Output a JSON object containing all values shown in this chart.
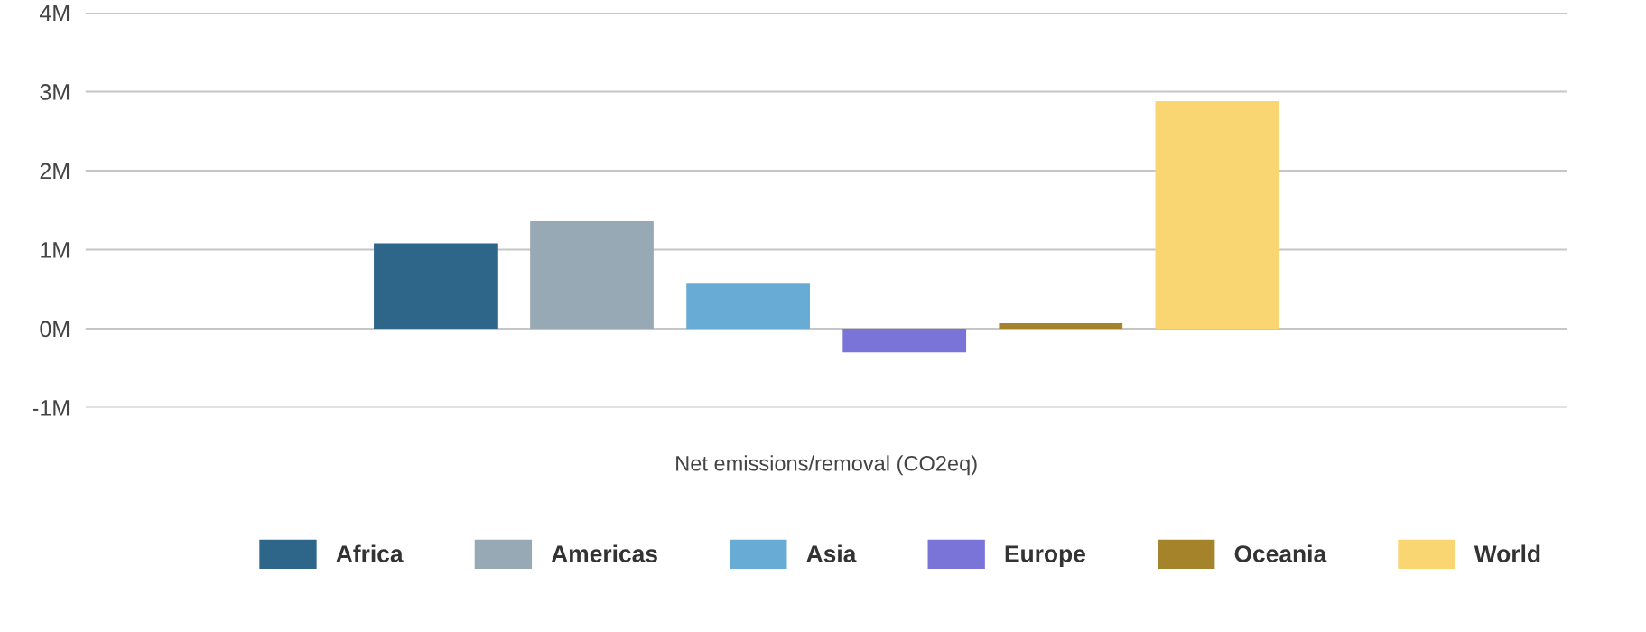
{
  "chart_data": {
    "type": "bar",
    "categories": [
      "Net emissions/removal (CO2eq)"
    ],
    "series": [
      {
        "name": "Africa",
        "color": "#2e6689",
        "values": [
          1.08
        ]
      },
      {
        "name": "Americas",
        "color": "#98a9b6",
        "values": [
          1.36
        ]
      },
      {
        "name": "Asia",
        "color": "#68abd4",
        "values": [
          0.57
        ]
      },
      {
        "name": "Europe",
        "color": "#7a74d8",
        "values": [
          -0.3
        ]
      },
      {
        "name": "Oceania",
        "color": "#a5832b",
        "values": [
          0.07
        ]
      },
      {
        "name": "World",
        "color": "#f9d672",
        "values": [
          2.88
        ]
      }
    ],
    "ylim": [
      -1,
      4
    ],
    "yticks": [
      {
        "value": -1,
        "label": "-1M"
      },
      {
        "value": 0,
        "label": "0M"
      },
      {
        "value": 1,
        "label": "1M"
      },
      {
        "value": 2,
        "label": "2M"
      },
      {
        "value": 3,
        "label": "3M"
      },
      {
        "value": 4,
        "label": "4M"
      }
    ],
    "grid": "y",
    "legend": "bottom"
  }
}
